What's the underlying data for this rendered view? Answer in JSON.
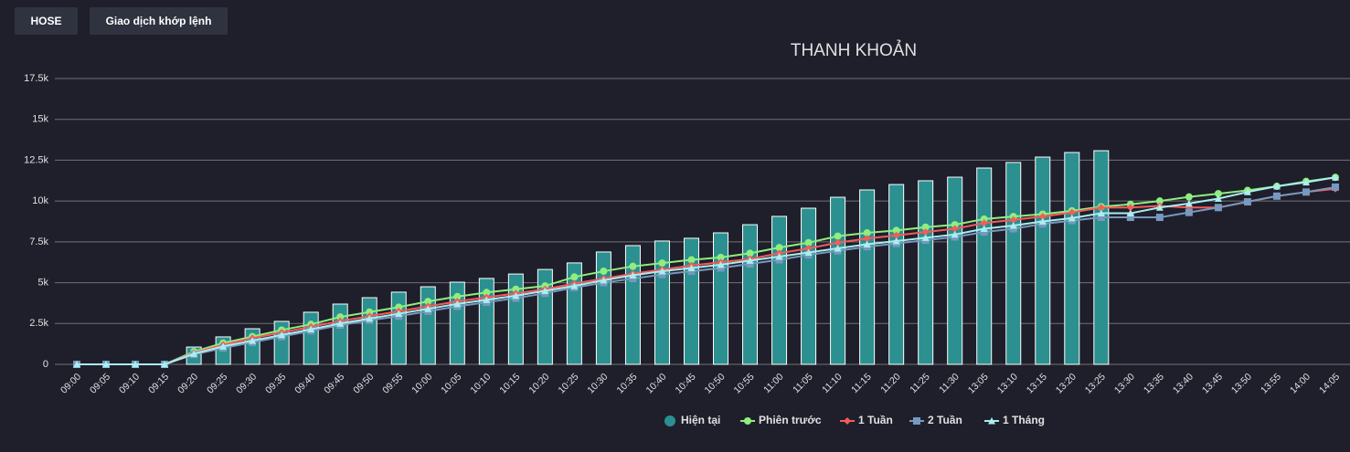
{
  "buttons": [
    "HOSE",
    "Giao dịch khớp lệnh"
  ],
  "chart_data": {
    "type": "bar",
    "title": "THANH KHOẢN",
    "categories": [
      "09:00",
      "09:05",
      "09:10",
      "09:15",
      "09:20",
      "09:25",
      "09:30",
      "09:35",
      "09:40",
      "09:45",
      "09:50",
      "09:55",
      "10:00",
      "10:05",
      "10:10",
      "10:15",
      "10:20",
      "10:25",
      "10:30",
      "10:35",
      "10:40",
      "10:45",
      "10:50",
      "10:55",
      "11:00",
      "11:05",
      "11:10",
      "11:15",
      "11:20",
      "11:25",
      "11:30",
      "13:05",
      "13:10",
      "13:15",
      "13:20",
      "13:25",
      "13:30",
      "13:35",
      "13:40",
      "13:45",
      "13:50",
      "13:55",
      "14:00",
      "14:05"
    ],
    "ylim": [
      0,
      17500
    ],
    "yticks": [
      0,
      {
        "value": 2500,
        "label": "2.5k"
      },
      {
        "value": 5000,
        "label": "5k"
      },
      {
        "value": 7500,
        "label": "7.5k"
      },
      {
        "value": 10000,
        "label": "10k"
      },
      {
        "value": 12500,
        "label": "12.5k"
      },
      {
        "value": 15000,
        "label": "15k"
      },
      {
        "value": 17500,
        "label": "17.5k"
      }
    ],
    "grid": true,
    "legend": "bottom",
    "series": [
      {
        "name": "Hiện tại",
        "type": "column",
        "color": "#2b908f",
        "values": [
          0,
          0,
          0,
          0,
          1060,
          1680,
          2180,
          2630,
          3190,
          3690,
          4080,
          4420,
          4750,
          5030,
          5260,
          5530,
          5810,
          6210,
          6880,
          7270,
          7550,
          7720,
          8050,
          8550,
          9060,
          9560,
          10230,
          10680,
          11010,
          11240,
          11460,
          12020,
          12360,
          12690,
          12970,
          13080,
          null,
          null,
          null,
          null,
          null,
          null,
          null,
          null
        ]
      },
      {
        "name": "Phiên trước",
        "type": "line",
        "marker": "circle",
        "color": "#90ee7e",
        "values": [
          0,
          0,
          0,
          0,
          780,
          1300,
          1700,
          2100,
          2450,
          2900,
          3200,
          3500,
          3850,
          4150,
          4400,
          4600,
          4800,
          5350,
          5700,
          6000,
          6200,
          6400,
          6550,
          6800,
          7150,
          7450,
          7850,
          8050,
          8200,
          8400,
          8550,
          8900,
          9050,
          9200,
          9400,
          9650,
          9800,
          10000,
          10250,
          10450,
          10650,
          10900,
          11200,
          11450
        ]
      },
      {
        "name": "1 Tuần",
        "type": "line",
        "marker": "diamond",
        "color": "#f45b5b",
        "values": [
          0,
          0,
          0,
          0,
          700,
          1200,
          1600,
          1950,
          2300,
          2650,
          2950,
          3250,
          3550,
          3850,
          4100,
          4350,
          4600,
          4950,
          5250,
          5550,
          5800,
          6050,
          6250,
          6450,
          6800,
          7100,
          7450,
          7700,
          7900,
          8100,
          8300,
          8650,
          8850,
          9050,
          9300,
          9600,
          9600,
          9700,
          9600,
          9600,
          9950,
          10300,
          10550,
          10750
        ]
      },
      {
        "name": "2 Tuần",
        "type": "line",
        "marker": "square",
        "color": "#7798bf",
        "values": [
          0,
          0,
          0,
          0,
          600,
          1000,
          1350,
          1700,
          2050,
          2400,
          2700,
          2950,
          3250,
          3550,
          3800,
          4050,
          4350,
          4700,
          5000,
          5250,
          5500,
          5700,
          5900,
          6150,
          6400,
          6700,
          6950,
          7200,
          7400,
          7600,
          7800,
          8100,
          8300,
          8600,
          8800,
          9000,
          9000,
          9000,
          9300,
          9600,
          9950,
          10300,
          10550,
          10850
        ]
      },
      {
        "name": "1 Tháng",
        "type": "line",
        "marker": "triangle",
        "color": "#aaeeee",
        "values": [
          0,
          0,
          0,
          0,
          650,
          1100,
          1450,
          1800,
          2150,
          2500,
          2800,
          3100,
          3400,
          3700,
          3950,
          4200,
          4500,
          4800,
          5150,
          5450,
          5700,
          5900,
          6100,
          6350,
          6600,
          6850,
          7100,
          7350,
          7550,
          7750,
          7950,
          8300,
          8500,
          8750,
          8950,
          9250,
          9250,
          9600,
          9850,
          10150,
          10550,
          10900,
          11150,
          11450
        ]
      }
    ]
  }
}
